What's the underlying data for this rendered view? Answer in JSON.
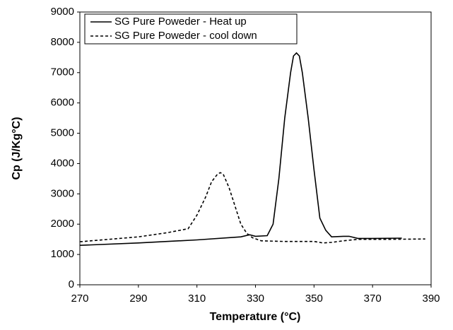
{
  "chart_data": {
    "type": "line",
    "x_label": "Temperature (°C)",
    "y_label": "Cp (J/Kg°C)",
    "xlim": [
      270,
      390
    ],
    "xticks": [
      270,
      290,
      310,
      330,
      350,
      370,
      390
    ],
    "ylim": [
      0,
      9000
    ],
    "yticks": [
      0,
      1000,
      2000,
      3000,
      4000,
      5000,
      6000,
      7000,
      8000,
      9000
    ],
    "legend": "upper left",
    "series": [
      {
        "name": "SG Pure Poweder - Heat up",
        "color": "#000000",
        "dash": false,
        "x": [
          270,
          290,
          310,
          325,
          328,
          330,
          334,
          336,
          338,
          340,
          342,
          343,
          344,
          345,
          346,
          348,
          350,
          352,
          354,
          356,
          360,
          362,
          365,
          370,
          380
        ],
        "values": [
          1300,
          1380,
          1480,
          1580,
          1650,
          1600,
          1620,
          2000,
          3500,
          5500,
          7000,
          7550,
          7650,
          7550,
          7000,
          5500,
          3800,
          2200,
          1800,
          1580,
          1600,
          1600,
          1530,
          1530,
          1540
        ]
      },
      {
        "name": "SG Pure Poweder - cool down",
        "color": "#000000",
        "dash": true,
        "x": [
          270,
          290,
          300,
          307,
          310,
          313,
          315,
          317,
          318,
          319,
          321,
          323,
          325,
          327,
          329,
          332,
          340,
          350,
          353,
          356,
          360,
          365,
          375,
          388
        ],
        "values": [
          1420,
          1580,
          1720,
          1850,
          2300,
          2900,
          3400,
          3650,
          3700,
          3650,
          3200,
          2600,
          2000,
          1700,
          1550,
          1450,
          1430,
          1430,
          1380,
          1400,
          1450,
          1500,
          1500,
          1510
        ]
      }
    ]
  }
}
